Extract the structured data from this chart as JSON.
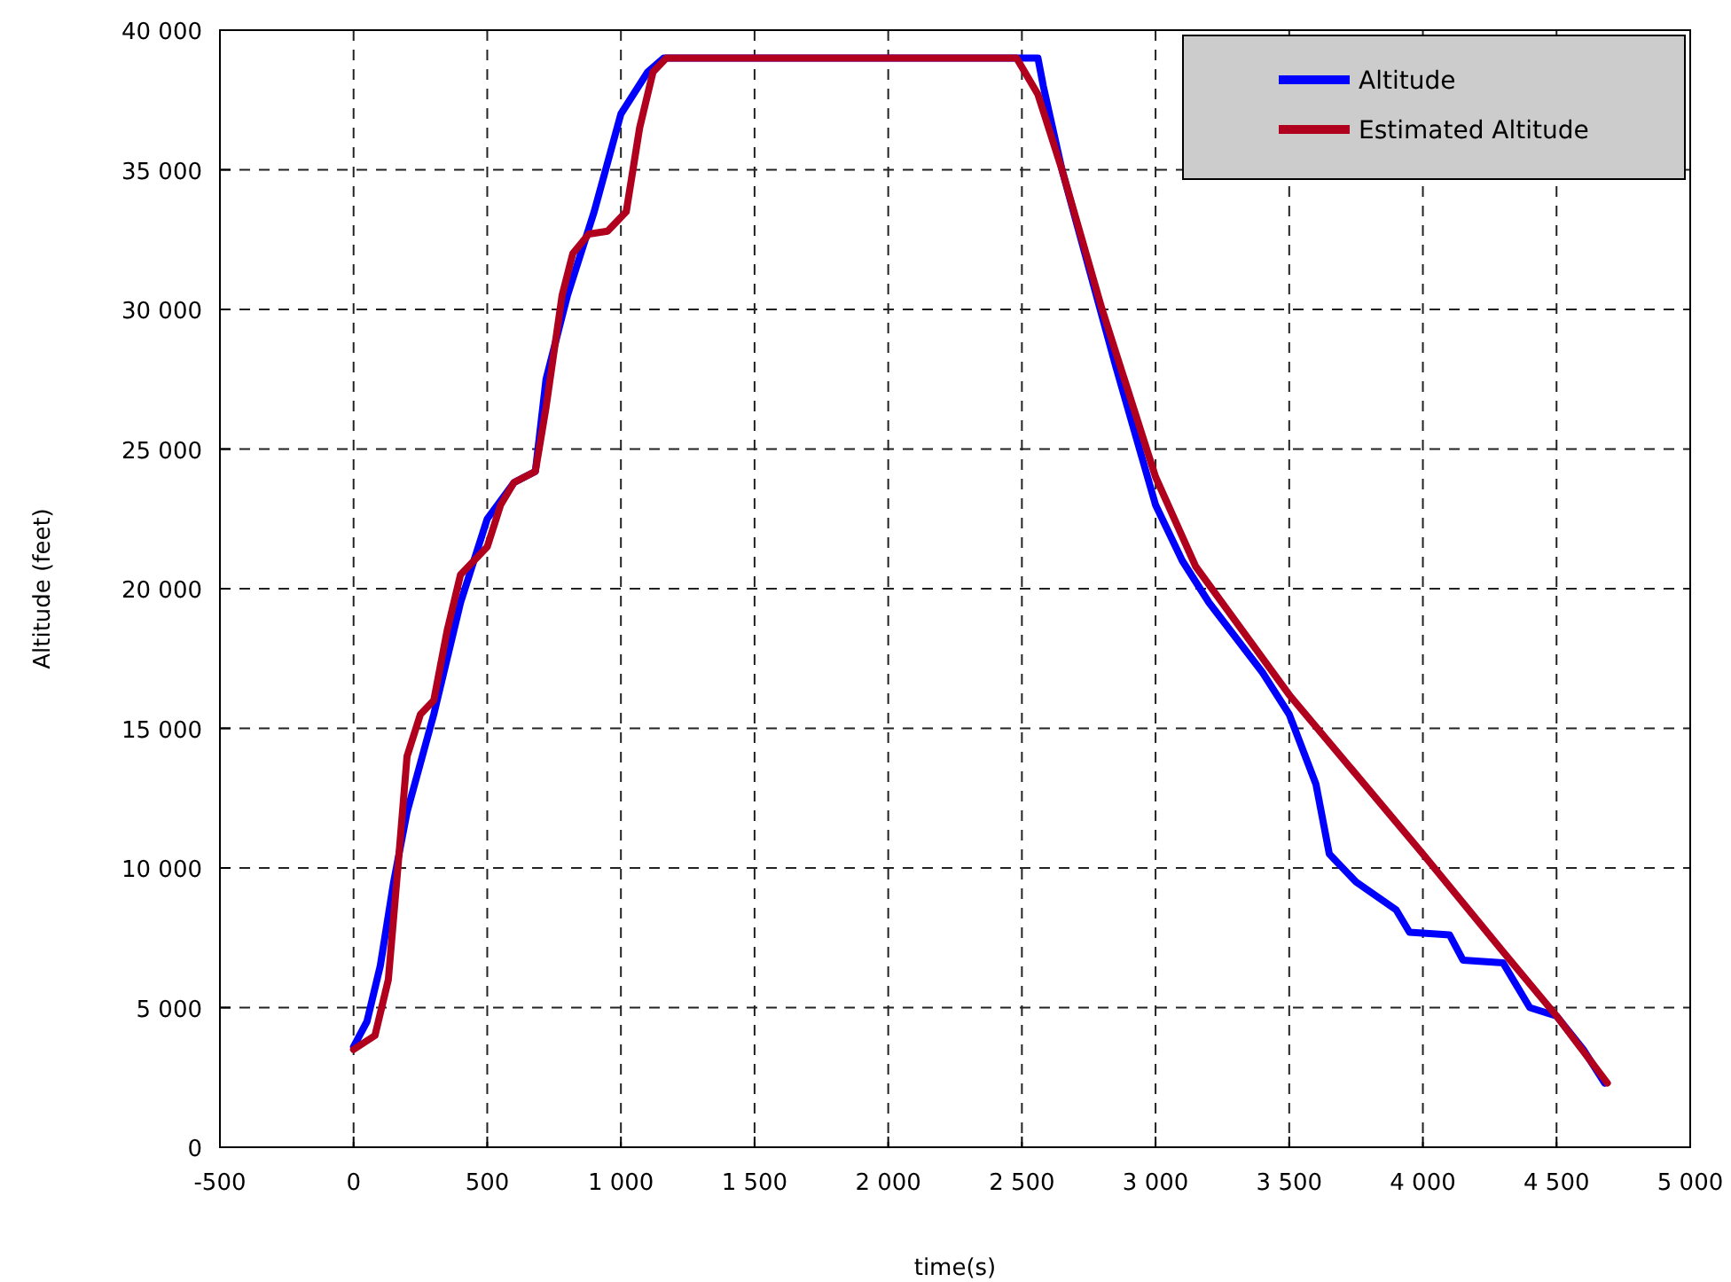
{
  "chart_data": {
    "type": "line",
    "xlabel": "time(s)",
    "ylabel": "Altitude (feet)",
    "xlim": [
      -500,
      5000
    ],
    "ylim": [
      0,
      40000
    ],
    "xticks": [
      -500,
      0,
      500,
      {
        "value": 1000,
        "label": "1 000"
      },
      {
        "value": 1500,
        "label": "1 500"
      },
      {
        "value": 2000,
        "label": "2 000"
      },
      {
        "value": 2500,
        "label": "2 500"
      },
      {
        "value": 3000,
        "label": "3 000"
      },
      {
        "value": 3500,
        "label": "3 500"
      },
      {
        "value": 4000,
        "label": "4 000"
      },
      {
        "value": 4500,
        "label": "4 500"
      },
      {
        "value": 5000,
        "label": "5 000"
      }
    ],
    "yticks": [
      0,
      {
        "value": 5000,
        "label": "5 000"
      },
      {
        "value": 10000,
        "label": "10 000"
      },
      {
        "value": 15000,
        "label": "15 000"
      },
      {
        "value": 20000,
        "label": "20 000"
      },
      {
        "value": 25000,
        "label": "25 000"
      },
      {
        "value": 30000,
        "label": "30 000"
      },
      {
        "value": 35000,
        "label": "35 000"
      },
      {
        "value": 40000,
        "label": "40 000"
      }
    ],
    "grid": true,
    "legend": "top right",
    "line_style": "solid",
    "series": [
      {
        "name": "Altitude",
        "color": "#0000ff",
        "x": [
          0,
          50,
          100,
          150,
          200,
          300,
          400,
          500,
          600,
          680,
          720,
          800,
          900,
          1000,
          1100,
          1160,
          2560,
          2580,
          2650,
          2750,
          2850,
          3000,
          3100,
          3200,
          3400,
          3500,
          3600,
          3650,
          3750,
          3900,
          3950,
          4100,
          4150,
          4300,
          4400,
          4500,
          4600,
          4680
        ],
        "values": [
          3600,
          4500,
          6500,
          9500,
          12000,
          15500,
          19500,
          22500,
          23800,
          24200,
          27500,
          30500,
          33500,
          37000,
          38500,
          39000,
          39000,
          38000,
          35000,
          31500,
          28000,
          23000,
          21000,
          19500,
          17000,
          15500,
          13000,
          10500,
          9500,
          8500,
          7700,
          7600,
          6700,
          6600,
          5000,
          4700,
          3500,
          2300
        ]
      },
      {
        "name": "Estimated Altitude",
        "color": "#b0001e",
        "x": [
          0,
          80,
          130,
          170,
          200,
          250,
          300,
          350,
          400,
          500,
          550,
          600,
          680,
          720,
          780,
          820,
          880,
          950,
          1020,
          1070,
          1120,
          1170,
          2480,
          2560,
          2650,
          2800,
          3000,
          3150,
          3500,
          4000,
          4300,
          4500,
          4690
        ],
        "values": [
          3500,
          4000,
          6000,
          10500,
          14000,
          15500,
          16000,
          18500,
          20500,
          21500,
          23000,
          23800,
          24200,
          26500,
          30500,
          32000,
          32700,
          32800,
          33500,
          36500,
          38500,
          39000,
          39000,
          37700,
          35000,
          30000,
          24000,
          20800,
          16200,
          10500,
          7000,
          4700,
          2300
        ]
      }
    ]
  }
}
